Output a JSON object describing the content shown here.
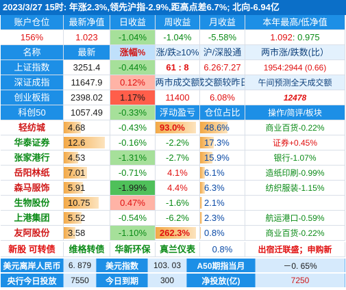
{
  "header": "2023/3/27  15时: 年涨2.3%,领先沪指-2.9%,距高点差6.7%; 北向-6.94亿",
  "row1": [
    "账户仓位",
    "最新净值",
    "日收益",
    "周收益",
    "月收益",
    "本年最高/低净值"
  ],
  "row2": {
    "pos": "156%",
    "nav": "1.023",
    "day": "-1.04%",
    "week": "-1.04%",
    "month": "-5.58%",
    "hl_a": "1.092",
    "hl_b": ": 0.975"
  },
  "row3": [
    "名称",
    "最新",
    "涨幅%",
    "涨/跌≥10%",
    "沪/深股通",
    "两市涨/跌数(比）"
  ],
  "indices": [
    {
      "name": "上证指数",
      "last": "3251.4",
      "chg": "-0.44%",
      "c4": "61 : 8",
      "c5": "6.26:7.27",
      "c6": "1954:2944 (0.66)"
    },
    {
      "name": "深证成指",
      "last": "11647.9",
      "chg": "0.12%",
      "c4": "两市成交额",
      "c5": "成交额较昨日",
      "c6": "午间预测全天成交额"
    },
    {
      "name": "创业板指",
      "last": "2398.02",
      "chg": "1.17%",
      "c4": "11400",
      "c5": "6.08%",
      "c6": "12478"
    },
    {
      "name": "科创50",
      "last": "1057.49",
      "chg": "-0.33%",
      "c4": "浮动盈亏",
      "c5": "仓位占比",
      "c6": "操作/简评/板块"
    }
  ],
  "stocks": [
    {
      "name": "轻纺城",
      "last": "4.68",
      "chg": "-0.43%",
      "pl": "93.0%",
      "w": "48.6%",
      "note": "商业百货-0.22%",
      "bar": 0.38,
      "wbar": 0.62
    },
    {
      "name": "华泰证券",
      "last": "12.6",
      "chg": "-0.16%",
      "pl": "-2.2%",
      "w": "17.3%",
      "note": "证券+0.45%",
      "bar": 0.9,
      "wbar": 0.3
    },
    {
      "name": "张家港行",
      "last": "4.53",
      "chg": "-1.31%",
      "pl": "-2.7%",
      "w": "15.9%",
      "note": "银行-1.07%",
      "bar": 0.32,
      "wbar": 0.27
    },
    {
      "name": "岳阳林纸",
      "last": "7.01",
      "chg": "-0.71%",
      "pl": "4.1%",
      "w": "6.1%",
      "note": "造纸印刷-0.99%",
      "bar": 0.5,
      "wbar": 0.1
    },
    {
      "name": "森马服饰",
      "last": "5.91",
      "chg": "-1.99%",
      "pl": "4.4%",
      "w": "6.3%",
      "note": "纺织服装-1.15%",
      "bar": 0.42,
      "wbar": 0.1
    },
    {
      "name": "生物股份",
      "last": "10.75",
      "chg": "0.47%",
      "pl": "-1.6%",
      "w": "2.1%",
      "note": "",
      "bar": 0.76,
      "wbar": 0.04
    },
    {
      "name": "上港集团",
      "last": "5.52",
      "chg": "-0.54%",
      "pl": "-6.2%",
      "w": "2.3%",
      "note": "航运港口-0.59%",
      "bar": 0.39,
      "wbar": 0.04
    },
    {
      "name": "友阿股份",
      "last": "3.58",
      "chg": "-1.10%",
      "pl": "262.3%",
      "w": "0.8%",
      "note": "商业百货-0.22%",
      "bar": 0.25,
      "wbar": 0.02
    }
  ],
  "newrow": [
    "新股 可转债",
    "维格转债",
    "华新环保",
    "真兰仪表",
    "0.8%",
    "出宿迁联盛；申购新"
  ],
  "foot1": [
    "美元离岸人民币",
    "6. 879",
    "美元指数",
    "103. 03",
    "A50期指当月",
    "－0. 65%"
  ],
  "foot2": [
    "央行今日投放",
    "7550",
    "今日到期",
    "300",
    "净投放(亿)",
    "7250"
  ]
}
